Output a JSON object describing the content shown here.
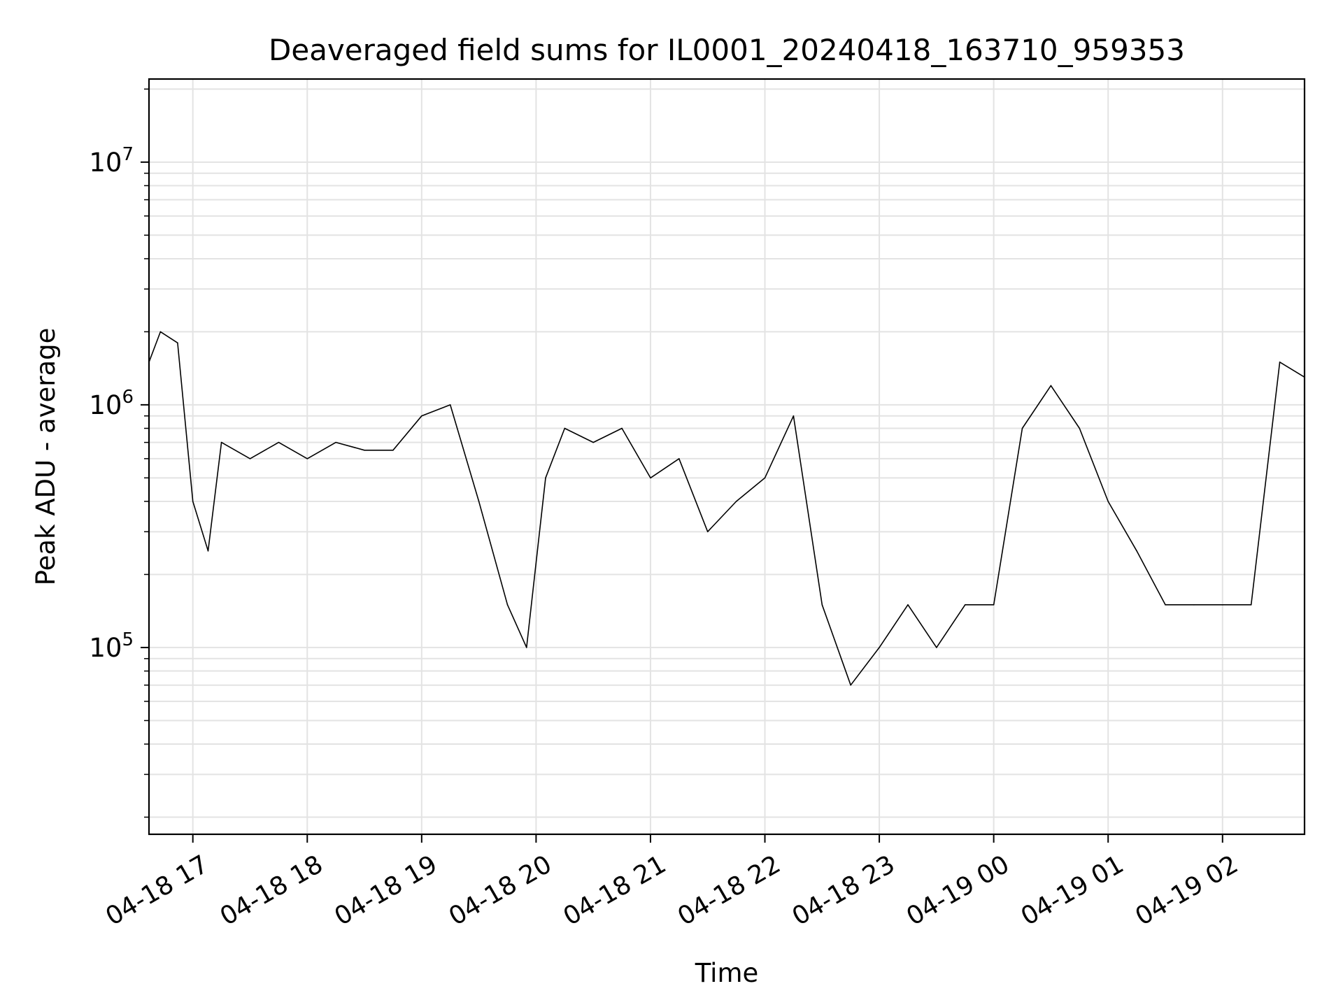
{
  "chart_data": {
    "type": "line",
    "title": "Deaveraged field sums for IL0001_20240418_163710_959353",
    "xlabel": "Time",
    "ylabel": "Peak ADU - average",
    "yscale": "log",
    "grid": true,
    "xlim": [
      "2024-04-18 16:37",
      "2024-04-19 02:43"
    ],
    "ylim": [
      17000,
      22000000
    ],
    "x_ticks": [
      {
        "value": "2024-04-18 17:00",
        "label": "04-18 17"
      },
      {
        "value": "2024-04-18 18:00",
        "label": "04-18 18"
      },
      {
        "value": "2024-04-18 19:00",
        "label": "04-18 19"
      },
      {
        "value": "2024-04-18 20:00",
        "label": "04-18 20"
      },
      {
        "value": "2024-04-18 21:00",
        "label": "04-18 21"
      },
      {
        "value": "2024-04-18 22:00",
        "label": "04-18 22"
      },
      {
        "value": "2024-04-18 23:00",
        "label": "04-18 23"
      },
      {
        "value": "2024-04-19 00:00",
        "label": "04-19 00"
      },
      {
        "value": "2024-04-19 01:00",
        "label": "04-19 01"
      },
      {
        "value": "2024-04-19 02:00",
        "label": "04-19 02"
      }
    ],
    "y_ticks": [
      {
        "value": 100000,
        "base": "10",
        "exp": "5"
      },
      {
        "value": 1000000,
        "base": "10",
        "exp": "6"
      },
      {
        "value": 10000000,
        "base": "10",
        "exp": "7"
      }
    ],
    "series": [
      {
        "color": "#000000",
        "x": [
          "2024-04-18 16:37",
          "2024-04-18 16:43",
          "2024-04-18 16:52",
          "2024-04-18 17:00",
          "2024-04-18 17:08",
          "2024-04-18 17:15",
          "2024-04-18 17:30",
          "2024-04-18 17:45",
          "2024-04-18 18:00",
          "2024-04-18 18:15",
          "2024-04-18 18:30",
          "2024-04-18 18:45",
          "2024-04-18 19:00",
          "2024-04-18 19:15",
          "2024-04-18 19:30",
          "2024-04-18 19:45",
          "2024-04-18 19:55",
          "2024-04-18 20:05",
          "2024-04-18 20:15",
          "2024-04-18 20:30",
          "2024-04-18 20:45",
          "2024-04-18 21:00",
          "2024-04-18 21:15",
          "2024-04-18 21:30",
          "2024-04-18 21:45",
          "2024-04-18 22:00",
          "2024-04-18 22:15",
          "2024-04-18 22:30",
          "2024-04-18 22:45",
          "2024-04-18 23:00",
          "2024-04-18 23:15",
          "2024-04-18 23:30",
          "2024-04-18 23:45",
          "2024-04-19 00:00",
          "2024-04-19 00:15",
          "2024-04-19 00:30",
          "2024-04-19 00:45",
          "2024-04-19 01:00",
          "2024-04-19 01:15",
          "2024-04-19 01:30",
          "2024-04-19 01:45",
          "2024-04-19 02:00",
          "2024-04-19 02:15",
          "2024-04-19 02:30",
          "2024-04-19 02:43"
        ],
        "y": [
          1500000,
          2000000,
          1800000,
          400000,
          250000,
          700000,
          600000,
          700000,
          600000,
          700000,
          650000,
          650000,
          900000,
          1000000,
          400000,
          150000,
          100000,
          500000,
          800000,
          700000,
          800000,
          500000,
          600000,
          300000,
          400000,
          500000,
          900000,
          150000,
          70000,
          100000,
          150000,
          100000,
          150000,
          150000,
          800000,
          1200000,
          800000,
          400000,
          250000,
          150000,
          150000,
          150000,
          150000,
          1500000,
          1300000
        ]
      }
    ]
  }
}
